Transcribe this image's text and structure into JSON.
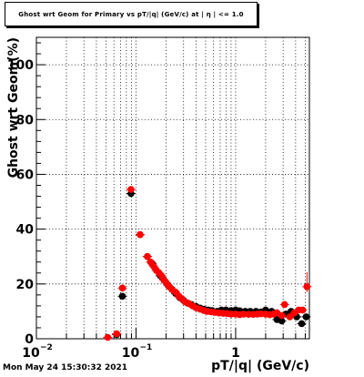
{
  "title": "Ghost wrt Geom for Primary vs pT/|q| (GeV/c) at | η | <= 1.0",
  "timestamp": "Mon May 24 15:30:32 2021",
  "colors": {
    "series_black": "#000000",
    "series_red": "#ff0000",
    "grid": "#000000",
    "frame": "#000000"
  },
  "chart_data": {
    "type": "scatter",
    "title": "Ghost wrt Geom for Primary vs pT/|q| (GeV/c) at | η | <= 1.0",
    "xlabel": "pT/|q| (GeV/c)",
    "ylabel": "Ghost wrt Geom(%)",
    "x_scale": "log",
    "xlim": [
      0.01,
      5.5
    ],
    "ylim": [
      0,
      110
    ],
    "grid": true,
    "x_tick_labels": [
      {
        "value": 0.01,
        "label": "10",
        "sup": "−2"
      },
      {
        "value": 0.1,
        "label": "10",
        "sup": "−1"
      },
      {
        "value": 1,
        "label": "1",
        "sup": ""
      }
    ],
    "y_tick_labels": [
      {
        "value": 0,
        "label": "0"
      },
      {
        "value": 20,
        "label": "20"
      },
      {
        "value": 40,
        "label": "40"
      },
      {
        "value": 60,
        "label": "60"
      },
      {
        "value": 80,
        "label": "80"
      },
      {
        "value": 100,
        "label": "100"
      }
    ],
    "series": [
      {
        "color": "#000000",
        "points": [
          {
            "x": 0.064,
            "y": 1.5
          },
          {
            "x": 0.073,
            "y": 15.5
          },
          {
            "x": 0.089,
            "y": 53
          },
          {
            "x": 0.11,
            "y": 38
          },
          {
            "x": 0.13,
            "y": 30
          },
          {
            "x": 0.145,
            "y": 27.5
          },
          {
            "x": 0.16,
            "y": 25
          },
          {
            "x": 0.175,
            "y": 23
          },
          {
            "x": 0.19,
            "y": 21.5
          },
          {
            "x": 0.21,
            "y": 19.5
          },
          {
            "x": 0.23,
            "y": 18
          },
          {
            "x": 0.25,
            "y": 16.5
          },
          {
            "x": 0.275,
            "y": 15
          },
          {
            "x": 0.3,
            "y": 14
          },
          {
            "x": 0.33,
            "y": 13
          },
          {
            "x": 0.36,
            "y": 12.5
          },
          {
            "x": 0.4,
            "y": 11.8
          },
          {
            "x": 0.44,
            "y": 11.2
          },
          {
            "x": 0.48,
            "y": 10.8
          },
          {
            "x": 0.53,
            "y": 10.5
          },
          {
            "x": 0.58,
            "y": 10.3
          },
          {
            "x": 0.65,
            "y": 10
          },
          {
            "x": 0.72,
            "y": 10.5
          },
          {
            "x": 0.8,
            "y": 10.5
          },
          {
            "x": 0.9,
            "y": 10.3
          },
          {
            "x": 1.0,
            "y": 10.5
          },
          {
            "x": 1.1,
            "y": 10.2
          },
          {
            "x": 1.25,
            "y": 10
          },
          {
            "x": 1.4,
            "y": 10
          },
          {
            "x": 1.6,
            "y": 10
          },
          {
            "x": 1.8,
            "y": 9.8
          },
          {
            "x": 2.0,
            "y": 10.5
          },
          {
            "x": 2.3,
            "y": 10
          },
          {
            "x": 2.6,
            "y": 7
          },
          {
            "x": 2.9,
            "y": 6.5
          },
          {
            "x": 3.2,
            "y": 9
          },
          {
            "x": 3.6,
            "y": 10
          },
          {
            "x": 4.1,
            "y": 8
          },
          {
            "x": 4.6,
            "y": 5.5
          },
          {
            "x": 5.1,
            "y": 8
          }
        ]
      },
      {
        "color": "#ff0000",
        "points": [
          {
            "x": 0.052,
            "y": 0.5
          },
          {
            "x": 0.064,
            "y": 1.8
          },
          {
            "x": 0.073,
            "y": 18.5
          },
          {
            "x": 0.089,
            "y": 54.5
          },
          {
            "x": 0.11,
            "y": 38
          },
          {
            "x": 0.13,
            "y": 30
          },
          {
            "x": 0.14,
            "y": 28
          },
          {
            "x": 0.15,
            "y": 26.5
          },
          {
            "x": 0.16,
            "y": 25
          },
          {
            "x": 0.17,
            "y": 24
          },
          {
            "x": 0.18,
            "y": 23
          },
          {
            "x": 0.19,
            "y": 21.5
          },
          {
            "x": 0.2,
            "y": 20.5
          },
          {
            "x": 0.215,
            "y": 19
          },
          {
            "x": 0.23,
            "y": 18
          },
          {
            "x": 0.25,
            "y": 17
          },
          {
            "x": 0.27,
            "y": 15.5
          },
          {
            "x": 0.29,
            "y": 14.5
          },
          {
            "x": 0.31,
            "y": 13.5
          },
          {
            "x": 0.34,
            "y": 12.8
          },
          {
            "x": 0.37,
            "y": 12
          },
          {
            "x": 0.4,
            "y": 11.3
          },
          {
            "x": 0.44,
            "y": 10.8
          },
          {
            "x": 0.48,
            "y": 10.3
          },
          {
            "x": 0.52,
            "y": 10
          },
          {
            "x": 0.57,
            "y": 9.8
          },
          {
            "x": 0.62,
            "y": 9.6
          },
          {
            "x": 0.68,
            "y": 9.4
          },
          {
            "x": 0.75,
            "y": 9.3
          },
          {
            "x": 0.82,
            "y": 9.2
          },
          {
            "x": 0.9,
            "y": 9
          },
          {
            "x": 1.0,
            "y": 9
          },
          {
            "x": 1.1,
            "y": 8.8
          },
          {
            "x": 1.2,
            "y": 9
          },
          {
            "x": 1.35,
            "y": 8.9
          },
          {
            "x": 1.5,
            "y": 8.9
          },
          {
            "x": 1.65,
            "y": 9
          },
          {
            "x": 1.8,
            "y": 9.1
          },
          {
            "x": 2.0,
            "y": 9
          },
          {
            "x": 2.2,
            "y": 8.8
          },
          {
            "x": 2.4,
            "y": 9
          },
          {
            "x": 2.6,
            "y": 9.5
          },
          {
            "x": 2.9,
            "y": 8.5
          },
          {
            "x": 3.1,
            "y": 12.5
          },
          {
            "x": 3.5,
            "y": 8
          },
          {
            "x": 3.9,
            "y": 9.5
          },
          {
            "x": 4.3,
            "y": 10.5
          },
          {
            "x": 4.7,
            "y": 10.5
          },
          {
            "x": 5.2,
            "y": 19
          }
        ]
      }
    ]
  }
}
